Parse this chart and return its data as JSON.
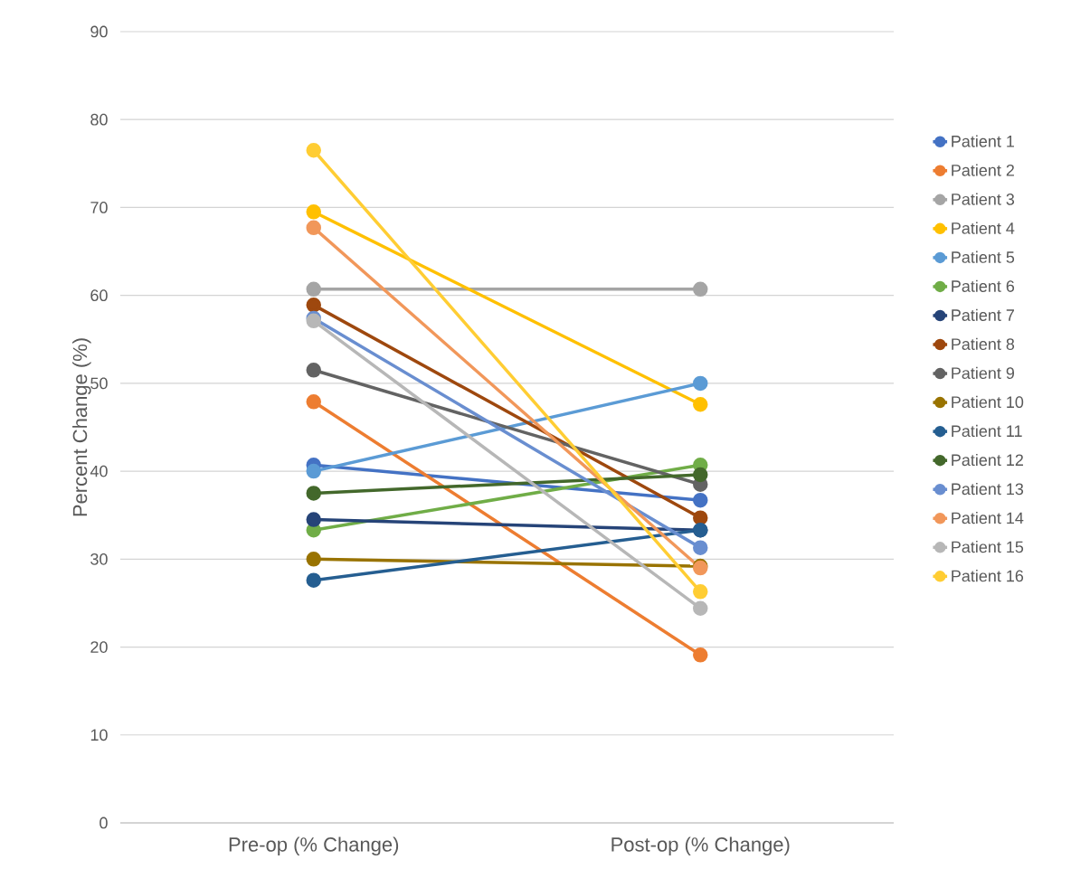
{
  "chart_data": {
    "type": "line",
    "ylabel": "Percent Change (%)",
    "categories": [
      "Pre-op (% Change)",
      "Post-op (% Change)"
    ],
    "ylim": [
      0,
      90
    ],
    "yticks": [
      0,
      10,
      20,
      30,
      40,
      50,
      60,
      70,
      80,
      90
    ],
    "grid": "y",
    "legend": "right",
    "marker": "circle",
    "line_style": "solid",
    "series": [
      {
        "name": "Patient 1",
        "color": "#4472c4",
        "values": [
          40.7,
          36.7
        ]
      },
      {
        "name": "Patient 2",
        "color": "#ed7d31",
        "values": [
          47.9,
          19.1
        ]
      },
      {
        "name": "Patient 3",
        "color": "#a5a5a5",
        "values": [
          60.7,
          60.7
        ]
      },
      {
        "name": "Patient 4",
        "color": "#ffc000",
        "values": [
          69.5,
          47.6
        ]
      },
      {
        "name": "Patient 5",
        "color": "#5b9bd5",
        "values": [
          40.0,
          50.0
        ]
      },
      {
        "name": "Patient 6",
        "color": "#70ad47",
        "values": [
          33.3,
          40.7
        ]
      },
      {
        "name": "Patient 7",
        "color": "#264478",
        "values": [
          34.5,
          33.3
        ]
      },
      {
        "name": "Patient 8",
        "color": "#9e480e",
        "values": [
          58.9,
          34.7
        ]
      },
      {
        "name": "Patient 9",
        "color": "#636363",
        "values": [
          51.5,
          38.5
        ]
      },
      {
        "name": "Patient 10",
        "color": "#997300",
        "values": [
          30.0,
          29.2
        ]
      },
      {
        "name": "Patient 11",
        "color": "#255e91",
        "values": [
          27.6,
          33.3
        ]
      },
      {
        "name": "Patient 12",
        "color": "#43682b",
        "values": [
          37.5,
          39.6
        ]
      },
      {
        "name": "Patient 13",
        "color": "#698ed0",
        "values": [
          57.4,
          31.3
        ]
      },
      {
        "name": "Patient 14",
        "color": "#f1975a",
        "values": [
          67.7,
          29.0
        ]
      },
      {
        "name": "Patient 15",
        "color": "#b7b7b7",
        "values": [
          57.1,
          24.4
        ]
      },
      {
        "name": "Patient 16",
        "color": "#ffcd33",
        "values": [
          76.5,
          26.3
        ]
      }
    ]
  }
}
